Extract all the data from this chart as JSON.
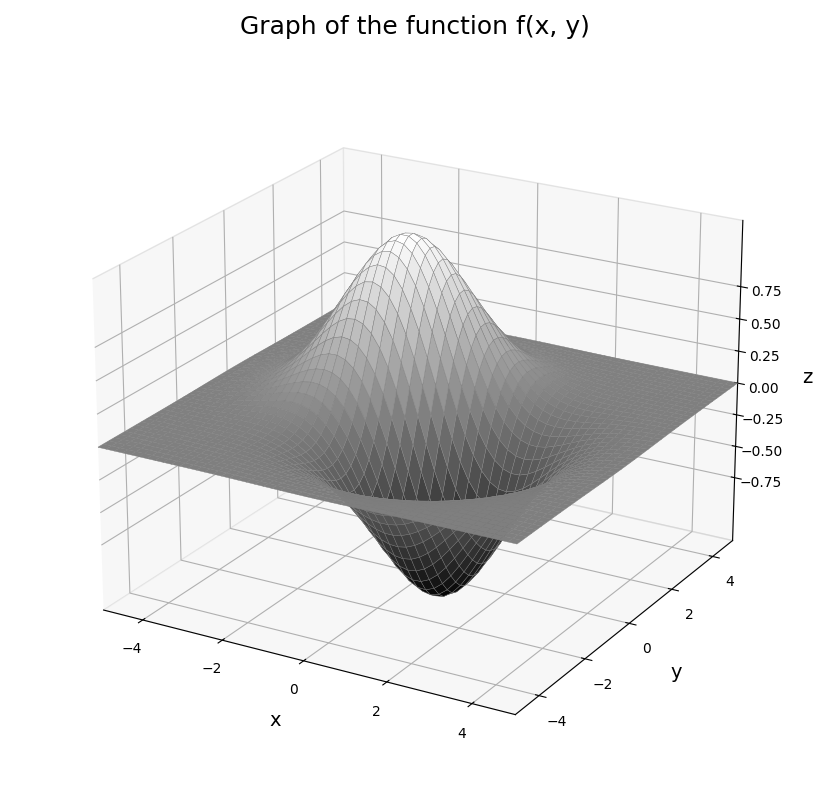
{
  "title": "Graph of the function f(x, y)",
  "title_fontsize": 18,
  "xlabel": "x",
  "ylabel": "y",
  "zlabel": "z",
  "x_range": [
    -5,
    5
  ],
  "y_range": [
    -5,
    5
  ],
  "n_points": 50,
  "colormap": "gray",
  "surface_alpha": 1.0,
  "elev": 22,
  "azim": -60,
  "figsize": [
    8.29,
    8.04
  ],
  "dpi": 100,
  "background_color": "#ffffff"
}
